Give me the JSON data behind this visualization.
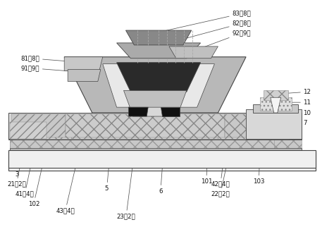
{
  "bg_color": "#ffffff",
  "lc": "#444444",
  "label_color": "#111111",
  "fs": 6.2
}
